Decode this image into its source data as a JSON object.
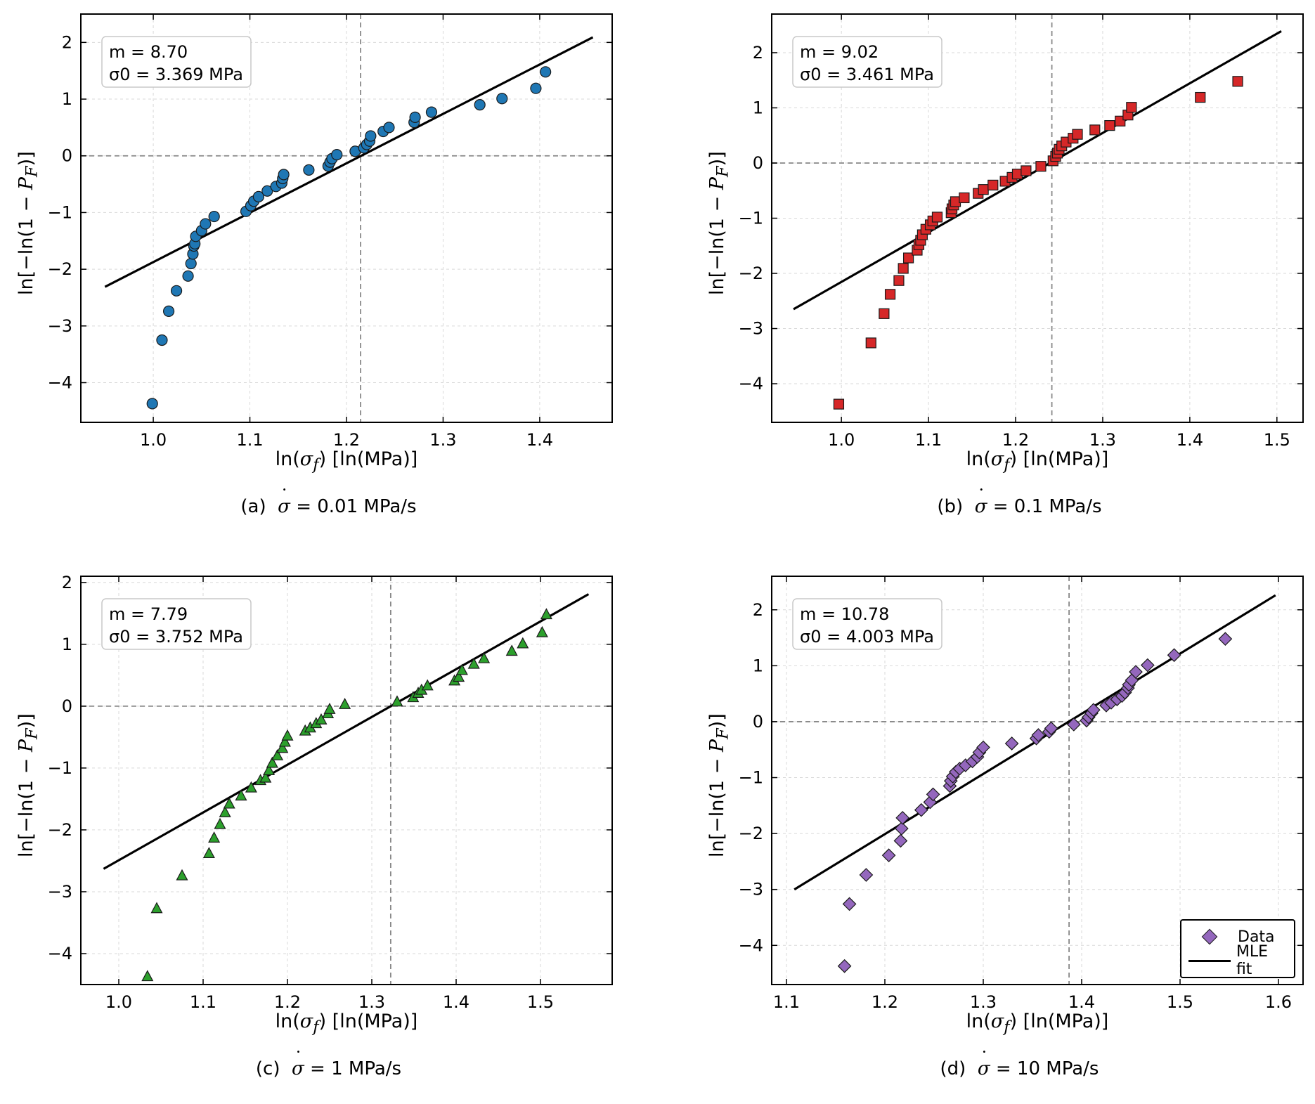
{
  "xlabel_main": "ln(",
  "xlabel_var": "σ",
  "xlabel_sub": "f",
  "xlabel_tail": ")  [ln(MPa)]",
  "ylabel_main": "ln[−ln(1 − ",
  "ylabel_var": "P",
  "ylabel_sub": "F",
  "ylabel_tail": ")]",
  "legend": {
    "data_label": "Data",
    "fit_label": "MLE fit"
  },
  "chart_data": [
    {
      "type": "scatter",
      "panel": "a",
      "caption_prefix": "(a)",
      "caption_rate": "= 0.01 MPa/s",
      "m_label": "m = 8.70",
      "sigma0_label": "σ0 = 3.369 MPa",
      "m": 8.7,
      "sigma0": 3.369,
      "marker": "circle",
      "color": "#1f77b4",
      "xlim": [
        0.925,
        1.475
      ],
      "ylim": [
        -4.7,
        2.5
      ],
      "xticks": [
        1.0,
        1.1,
        1.2,
        1.3,
        1.4
      ],
      "yticks": [
        -4,
        -3,
        -2,
        -1,
        0,
        1,
        2
      ],
      "ref_x": 1.2146,
      "fit": {
        "x": [
          0.95,
          1.455
        ],
        "y": [
          -2.31,
          2.09
        ]
      },
      "points": {
        "x": [
          0.999,
          1.009,
          1.016,
          1.024,
          1.036,
          1.039,
          1.041,
          1.042,
          1.043,
          1.044,
          1.05,
          1.054,
          1.063,
          1.096,
          1.101,
          1.104,
          1.109,
          1.118,
          1.127,
          1.133,
          1.134,
          1.135,
          1.161,
          1.181,
          1.183,
          1.185,
          1.19,
          1.209,
          1.218,
          1.221,
          1.224,
          1.225,
          1.238,
          1.244,
          1.27,
          1.271,
          1.288,
          1.338,
          1.361,
          1.396,
          1.406
        ],
        "y": [
          -4.37,
          -3.25,
          -2.74,
          -2.38,
          -2.12,
          -1.9,
          -1.73,
          -1.59,
          -1.55,
          -1.42,
          -1.32,
          -1.2,
          -1.07,
          -0.98,
          -0.88,
          -0.8,
          -0.72,
          -0.62,
          -0.54,
          -0.48,
          -0.4,
          -0.33,
          -0.25,
          -0.18,
          -0.11,
          -0.05,
          0.02,
          0.08,
          0.14,
          0.2,
          0.26,
          0.35,
          0.43,
          0.5,
          0.59,
          0.68,
          0.77,
          0.9,
          1.01,
          1.19,
          1.48
        ]
      }
    },
    {
      "type": "scatter",
      "panel": "b",
      "caption_prefix": "(b)",
      "caption_rate": "= 0.1 MPa/s",
      "m_label": "m = 9.02",
      "sigma0_label": "σ0 = 3.461 MPa",
      "m": 9.02,
      "sigma0": 3.461,
      "marker": "square",
      "color": "#d62728",
      "xlim": [
        0.92,
        1.53
      ],
      "ylim": [
        -4.7,
        2.7
      ],
      "xticks": [
        1.0,
        1.1,
        1.2,
        1.3,
        1.4,
        1.5
      ],
      "yticks": [
        -4,
        -3,
        -2,
        -1,
        0,
        1,
        2
      ],
      "ref_x": 1.2416,
      "fit": {
        "x": [
          0.945,
          1.505
        ],
        "y": [
          -2.65,
          2.39
        ]
      },
      "points": {
        "x": [
          0.997,
          1.034,
          1.049,
          1.056,
          1.066,
          1.071,
          1.077,
          1.087,
          1.089,
          1.091,
          1.093,
          1.097,
          1.102,
          1.105,
          1.11,
          1.126,
          1.127,
          1.129,
          1.131,
          1.141,
          1.157,
          1.163,
          1.174,
          1.188,
          1.196,
          1.202,
          1.212,
          1.229,
          1.243,
          1.246,
          1.248,
          1.25,
          1.253,
          1.258,
          1.266,
          1.271,
          1.291,
          1.308,
          1.32,
          1.329,
          1.333,
          1.412,
          1.455
        ],
        "y": [
          -4.37,
          -3.26,
          -2.73,
          -2.38,
          -2.13,
          -1.91,
          -1.72,
          -1.58,
          -1.48,
          -1.4,
          -1.3,
          -1.2,
          -1.12,
          -1.05,
          -0.98,
          -0.9,
          -0.83,
          -0.76,
          -0.7,
          -0.63,
          -0.55,
          -0.48,
          -0.4,
          -0.33,
          -0.26,
          -0.2,
          -0.14,
          -0.06,
          0.04,
          0.12,
          0.18,
          0.25,
          0.31,
          0.38,
          0.45,
          0.52,
          0.6,
          0.68,
          0.76,
          0.87,
          1.01,
          1.19,
          1.48
        ]
      }
    },
    {
      "type": "scatter",
      "panel": "c",
      "caption_prefix": "(c)",
      "caption_rate": "= 1 MPa/s",
      "m_label": "m = 7.79",
      "sigma0_label": "σ0 = 3.752 MPa",
      "m": 7.79,
      "sigma0": 3.752,
      "marker": "triangle",
      "color": "#2ca02c",
      "xlim": [
        0.955,
        1.585
      ],
      "ylim": [
        -4.5,
        2.1
      ],
      "xticks": [
        1.0,
        1.1,
        1.2,
        1.3,
        1.4,
        1.5
      ],
      "yticks": [
        -4,
        -3,
        -2,
        -1,
        0,
        1,
        2
      ],
      "ref_x": 1.3224,
      "fit": {
        "x": [
          0.982,
          1.557
        ],
        "y": [
          -2.63,
          1.81
        ]
      },
      "points": {
        "x": [
          1.034,
          1.045,
          1.075,
          1.107,
          1.113,
          1.12,
          1.126,
          1.131,
          1.145,
          1.157,
          1.168,
          1.174,
          1.178,
          1.182,
          1.188,
          1.194,
          1.197,
          1.2,
          1.221,
          1.227,
          1.234,
          1.24,
          1.248,
          1.25,
          1.268,
          1.33,
          1.349,
          1.355,
          1.359,
          1.366,
          1.398,
          1.403,
          1.407,
          1.421,
          1.433,
          1.466,
          1.479,
          1.502,
          1.507
        ],
        "y": [
          -4.37,
          -3.27,
          -2.74,
          -2.38,
          -2.13,
          -1.91,
          -1.72,
          -1.58,
          -1.45,
          -1.32,
          -1.2,
          -1.16,
          -1.04,
          -0.92,
          -0.8,
          -0.68,
          -0.58,
          -0.48,
          -0.4,
          -0.35,
          -0.28,
          -0.22,
          -0.12,
          -0.05,
          0.03,
          0.07,
          0.14,
          0.21,
          0.26,
          0.33,
          0.41,
          0.47,
          0.58,
          0.68,
          0.77,
          0.89,
          1.01,
          1.19,
          1.48
        ]
      }
    },
    {
      "type": "scatter",
      "panel": "d",
      "caption_prefix": "(d)",
      "caption_rate": "= 10 MPa/s",
      "m_label": "m = 10.78",
      "sigma0_label": "σ0 = 4.003 MPa",
      "m": 10.78,
      "sigma0": 4.003,
      "marker": "diamond",
      "color": "#9467bd",
      "xlim": [
        1.085,
        1.625
      ],
      "ylim": [
        -4.7,
        2.6
      ],
      "xticks": [
        1.1,
        1.2,
        1.3,
        1.4,
        1.5,
        1.6
      ],
      "yticks": [
        -4,
        -3,
        -2,
        -1,
        0,
        1,
        2
      ],
      "ref_x": 1.3872,
      "fit": {
        "x": [
          1.108,
          1.597
        ],
        "y": [
          -3.0,
          2.26
        ]
      },
      "legend_position": "lower right",
      "points": {
        "x": [
          1.159,
          1.164,
          1.181,
          1.204,
          1.216,
          1.217,
          1.218,
          1.237,
          1.246,
          1.249,
          1.266,
          1.267,
          1.269,
          1.272,
          1.276,
          1.282,
          1.289,
          1.294,
          1.296,
          1.3,
          1.329,
          1.354,
          1.356,
          1.367,
          1.369,
          1.392,
          1.405,
          1.407,
          1.41,
          1.412,
          1.425,
          1.43,
          1.436,
          1.441,
          1.444,
          1.447,
          1.448,
          1.451,
          1.455,
          1.467,
          1.494,
          1.546
        ],
        "y": [
          -4.37,
          -3.26,
          -2.74,
          -2.39,
          -2.13,
          -1.91,
          -1.72,
          -1.58,
          -1.44,
          -1.3,
          -1.15,
          -1.06,
          -0.98,
          -0.9,
          -0.84,
          -0.78,
          -0.71,
          -0.63,
          -0.55,
          -0.46,
          -0.39,
          -0.3,
          -0.24,
          -0.18,
          -0.12,
          -0.05,
          0.02,
          0.08,
          0.15,
          0.21,
          0.29,
          0.34,
          0.4,
          0.46,
          0.52,
          0.6,
          0.66,
          0.74,
          0.89,
          1.01,
          1.19,
          1.48
        ]
      }
    }
  ]
}
